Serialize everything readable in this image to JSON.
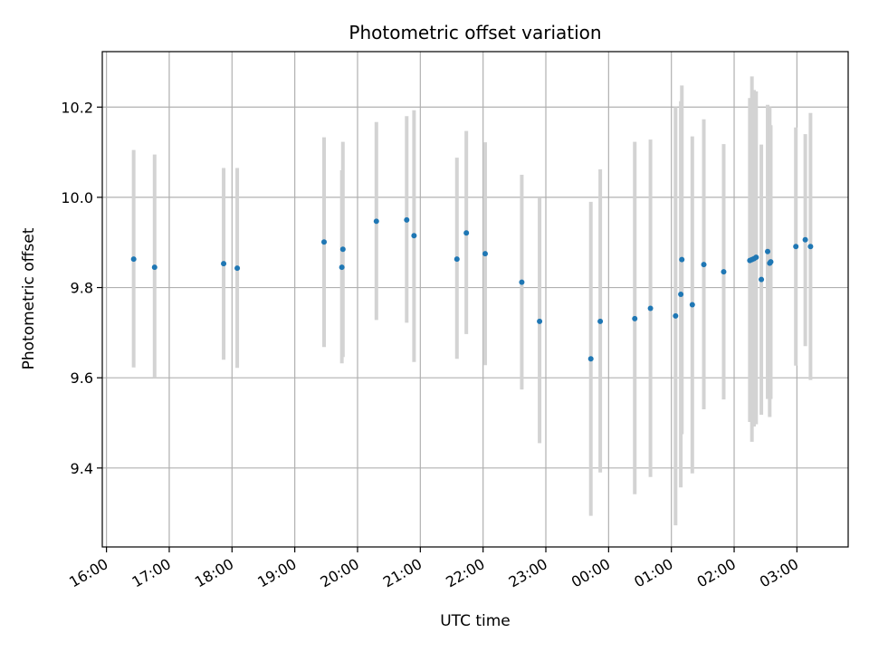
{
  "chart_data": {
    "type": "scatter",
    "title": "Photometric offset variation",
    "xlabel": "UTC time",
    "ylabel": "Photometric offset",
    "grid": true,
    "x_tick_labels": [
      "16:00",
      "17:00",
      "18:00",
      "19:00",
      "20:00",
      "21:00",
      "22:00",
      "23:00",
      "00:00",
      "01:00",
      "02:00",
      "03:00"
    ],
    "y_tick_labels": [
      "9.4",
      "9.6",
      "9.8",
      "10.0",
      "10.2"
    ],
    "y_ticks": [
      9.4,
      9.6,
      9.8,
      10.0,
      10.2
    ],
    "ylim": [
      9.225,
      10.323
    ],
    "xlim": [
      "15:56",
      "03:49"
    ],
    "marker_color": "#1f77b4",
    "errorbar_color": "#d3d3d3",
    "points": [
      {
        "t": "16:26",
        "y": 9.863,
        "lo": 9.623,
        "hi": 10.105
      },
      {
        "t": "16:46",
        "y": 9.845,
        "lo": 9.6,
        "hi": 10.095
      },
      {
        "t": "17:52",
        "y": 9.853,
        "lo": 9.64,
        "hi": 10.065
      },
      {
        "t": "18:05",
        "y": 9.843,
        "lo": 9.622,
        "hi": 10.065
      },
      {
        "t": "19:28",
        "y": 9.901,
        "lo": 9.668,
        "hi": 10.133
      },
      {
        "t": "19:45",
        "y": 9.845,
        "lo": 9.632,
        "hi": 10.06
      },
      {
        "t": "19:46",
        "y": 9.885,
        "lo": 9.646,
        "hi": 10.123
      },
      {
        "t": "20:18",
        "y": 9.947,
        "lo": 9.728,
        "hi": 10.167
      },
      {
        "t": "20:47",
        "y": 9.95,
        "lo": 9.722,
        "hi": 10.18
      },
      {
        "t": "20:54",
        "y": 9.915,
        "lo": 9.635,
        "hi": 10.193
      },
      {
        "t": "21:35",
        "y": 9.863,
        "lo": 9.642,
        "hi": 10.088
      },
      {
        "t": "21:44",
        "y": 9.921,
        "lo": 9.697,
        "hi": 10.147
      },
      {
        "t": "22:02",
        "y": 9.875,
        "lo": 9.628,
        "hi": 10.122
      },
      {
        "t": "22:37",
        "y": 9.812,
        "lo": 9.574,
        "hi": 10.05
      },
      {
        "t": "22:54",
        "y": 9.725,
        "lo": 9.455,
        "hi": 9.998
      },
      {
        "t": "23:43",
        "y": 9.642,
        "lo": 9.294,
        "hi": 9.99
      },
      {
        "t": "23:52",
        "y": 9.725,
        "lo": 9.39,
        "hi": 10.062
      },
      {
        "t": "00:25",
        "y": 9.731,
        "lo": 9.342,
        "hi": 10.123
      },
      {
        "t": "00:40",
        "y": 9.754,
        "lo": 9.38,
        "hi": 10.128
      },
      {
        "t": "01:04",
        "y": 9.737,
        "lo": 9.273,
        "hi": 10.2
      },
      {
        "t": "01:09",
        "y": 9.785,
        "lo": 9.357,
        "hi": 10.213
      },
      {
        "t": "01:10",
        "y": 9.862,
        "lo": 9.475,
        "hi": 10.248
      },
      {
        "t": "01:20",
        "y": 9.762,
        "lo": 9.388,
        "hi": 10.135
      },
      {
        "t": "01:31",
        "y": 9.851,
        "lo": 9.53,
        "hi": 10.173
      },
      {
        "t": "01:50",
        "y": 9.835,
        "lo": 9.552,
        "hi": 10.118
      },
      {
        "t": "02:15",
        "y": 9.86,
        "lo": 9.502,
        "hi": 10.22
      },
      {
        "t": "02:17",
        "y": 9.862,
        "lo": 9.458,
        "hi": 10.268
      },
      {
        "t": "02:19",
        "y": 9.864,
        "lo": 9.492,
        "hi": 10.238
      },
      {
        "t": "02:21",
        "y": 9.867,
        "lo": 9.497,
        "hi": 10.235
      },
      {
        "t": "02:26",
        "y": 9.818,
        "lo": 9.518,
        "hi": 10.117
      },
      {
        "t": "02:32",
        "y": 9.88,
        "lo": 9.553,
        "hi": 10.205
      },
      {
        "t": "02:34",
        "y": 9.854,
        "lo": 9.513,
        "hi": 10.2
      },
      {
        "t": "02:35",
        "y": 9.857,
        "lo": 9.553,
        "hi": 10.16
      },
      {
        "t": "02:59",
        "y": 9.891,
        "lo": 9.627,
        "hi": 10.155
      },
      {
        "t": "03:08",
        "y": 9.906,
        "lo": 9.67,
        "hi": 10.14
      },
      {
        "t": "03:13",
        "y": 9.891,
        "lo": 9.595,
        "hi": 10.187
      }
    ]
  }
}
